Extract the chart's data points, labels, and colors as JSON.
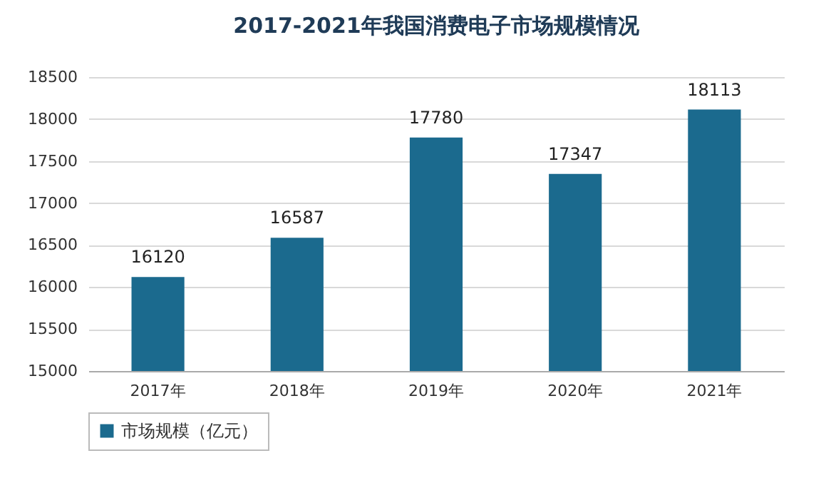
{
  "chart_data": {
    "type": "bar",
    "title": "2017-2021年我国消费电子市场规模情况",
    "categories": [
      "2017年",
      "2018年",
      "2019年",
      "2020年",
      "2021年"
    ],
    "series": [
      {
        "name": "市场规模（亿元）",
        "color": "#1b6a8e",
        "values": [
          16120,
          16587,
          17780,
          17347,
          18113
        ]
      }
    ],
    "ylim": [
      15000,
      18500
    ],
    "yticks": [
      15000,
      15500,
      16000,
      16500,
      17000,
      17500,
      18000,
      18500
    ],
    "grid": "y",
    "legend": "bottom",
    "data_labels": true
  }
}
